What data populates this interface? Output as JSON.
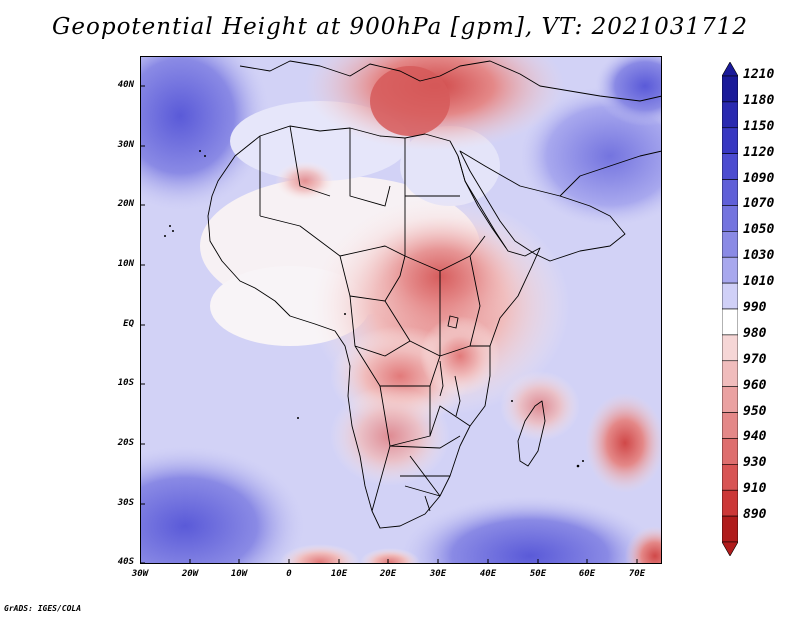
{
  "title": "Geopotential Height at 900hPa [gpm], VT: 2021031712",
  "credit": "GrADS: IGES/COLA",
  "map": {
    "lat_labels": [
      "40N",
      "30N",
      "20N",
      "10N",
      "EQ",
      "10S",
      "20S",
      "30S",
      "40S"
    ],
    "lon_labels": [
      "30W",
      "20W",
      "10W",
      "0",
      "10E",
      "20E",
      "30E",
      "40E",
      "50E",
      "60E",
      "70E"
    ],
    "lat_range": [
      -40,
      45
    ],
    "lon_range": [
      -30,
      75
    ]
  },
  "colorbar": {
    "labels": [
      "1210",
      "1180",
      "1150",
      "1120",
      "1090",
      "1070",
      "1050",
      "1030",
      "1010",
      "990",
      "980",
      "970",
      "960",
      "950",
      "940",
      "930",
      "910",
      "890"
    ],
    "colors": [
      "#1a1a99",
      "#2929b0",
      "#3838c2",
      "#4c4cd0",
      "#6060d8",
      "#7474df",
      "#8a8ae5",
      "#a8a8ee",
      "#d0d0f7",
      "#ffffff",
      "#f6d6d6",
      "#f0bcbc",
      "#eaa1a1",
      "#e48888",
      "#de6e6e",
      "#d85454",
      "#cc3838",
      "#b01c1c"
    ],
    "up_arrow_color": "#1a1a99",
    "down_arrow_color": "#b01c1c"
  },
  "colors": {
    "ocean_base": "#d2d2f6",
    "land_base": "#fbf6f6",
    "high": "#6a6ade",
    "low": "#d85454"
  }
}
